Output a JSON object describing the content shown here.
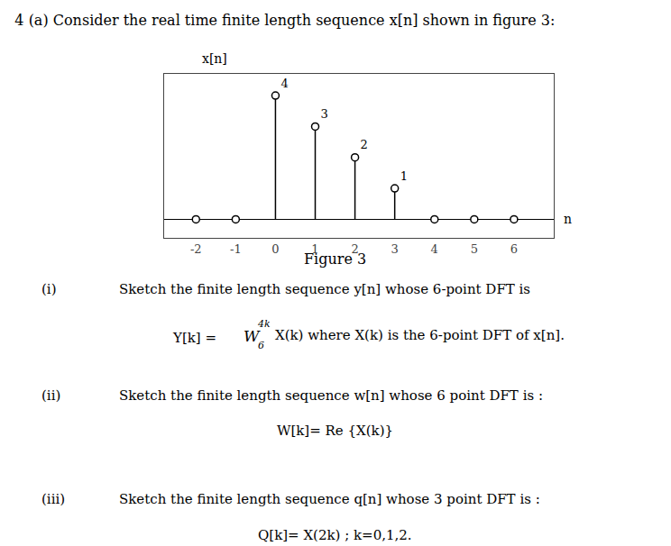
{
  "chart_data": {
    "type": "stem",
    "title": "4 (a) Consider the real time finite length sequence x[n] shown in figure 3:",
    "x_label": "n",
    "y_label": "x[n]",
    "x": [
      0,
      1,
      2,
      3,
      -2,
      -1,
      4,
      5,
      6
    ],
    "values": [
      4,
      3,
      2,
      1,
      0,
      0,
      0,
      0,
      0
    ],
    "value_labels": [
      "4",
      "3",
      "2",
      "1",
      null,
      null,
      null,
      null,
      null
    ],
    "data_labels": true,
    "color": "#000000",
    "xlim": [
      -2.8,
      7.0
    ],
    "xticks": [
      -2,
      -1,
      0,
      1,
      2,
      3,
      4,
      5,
      6
    ],
    "ylim": [
      -0.6,
      4.7
    ],
    "tick_labels": "x",
    "grid": false,
    "annotations": [
      "Figure 3",
      "(i)",
      "Sketch the finite length sequence y[n] whose 6-point DFT is",
      "Y[k] =",
      "W",
      "4k",
      "6",
      "X(k) where X(k) is the 6-point DFT of x[n].",
      "(ii)",
      "Sketch the finite length sequence w[n] whose 6 point DFT is :",
      "W[k]= Re {X(k)}",
      "(iii)",
      "Sketch the finite length sequence q[n] whose 3 point DFT is :",
      "Q[k]= X(2k) ; k=0,1,2."
    ]
  }
}
